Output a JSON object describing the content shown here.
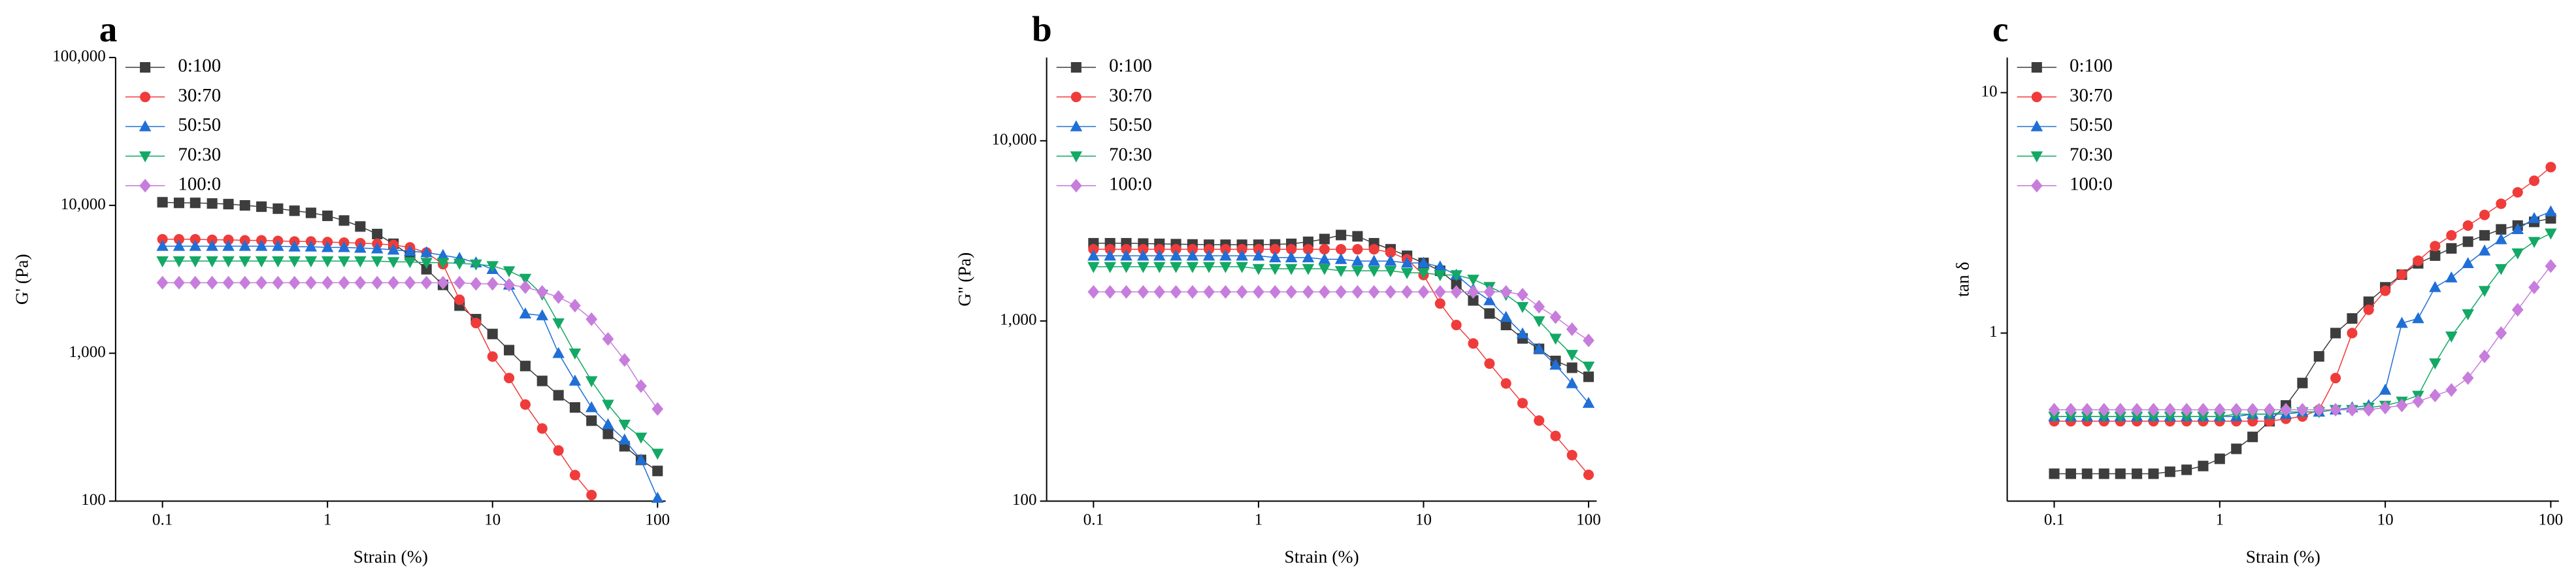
{
  "chart_data": [
    {
      "type": "line",
      "title": "a",
      "xlabel": "Strain (%)",
      "ylabel": "G' (Pa)",
      "xscale": "log",
      "yscale": "log",
      "legend": "upper left",
      "xlim": [
        0.052,
        112
      ],
      "xticks": [
        0.1,
        1,
        10,
        100
      ],
      "ylim": [
        100,
        100000
      ],
      "yticks": [
        100,
        {
          "value": 1000,
          "label": "1,000"
        },
        {
          "value": 10000,
          "label": "10,000"
        },
        {
          "value": 100000,
          "label": "100,000"
        }
      ],
      "x": [
        0.1,
        0.126,
        0.158,
        0.2,
        0.251,
        0.316,
        0.398,
        0.501,
        0.631,
        0.794,
        1,
        1.26,
        1.58,
        2,
        2.51,
        3.16,
        3.98,
        5.01,
        6.31,
        7.94,
        10,
        12.6,
        15.8,
        20,
        25.1,
        31.6,
        39.8,
        50.1,
        63.1,
        79.4,
        100
      ],
      "series": [
        {
          "name": "0:100",
          "color": "#3d3d3d",
          "marker": "square",
          "values": [
            10500,
            10400,
            10400,
            10300,
            10200,
            10000,
            9800,
            9500,
            9200,
            8900,
            8500,
            7900,
            7200,
            6400,
            5500,
            4600,
            3700,
            2900,
            2100,
            1700,
            1350,
            1050,
            820,
            650,
            520,
            430,
            350,
            285,
            235,
            190,
            160
          ]
        },
        {
          "name": "30:70",
          "color": "#f03b3b",
          "marker": "circle",
          "values": [
            5900,
            5900,
            5900,
            5850,
            5850,
            5800,
            5800,
            5750,
            5700,
            5700,
            5650,
            5600,
            5550,
            5500,
            5400,
            5200,
            4800,
            4000,
            2300,
            1600,
            950,
            680,
            450,
            310,
            220,
            150,
            110,
            null,
            null,
            null,
            null
          ]
        },
        {
          "name": "50:50",
          "color": "#1f6fd6",
          "marker": "triangle-up",
          "values": [
            5300,
            5300,
            5300,
            5300,
            5300,
            5300,
            5300,
            5300,
            5250,
            5250,
            5200,
            5200,
            5150,
            5100,
            5000,
            4900,
            4800,
            4600,
            4400,
            4100,
            3700,
            2900,
            1850,
            1800,
            1000,
            650,
            430,
            330,
            260,
            190,
            105
          ]
        },
        {
          "name": "70:30",
          "color": "#14a865",
          "marker": "triangle-down",
          "values": [
            4200,
            4200,
            4200,
            4200,
            4200,
            4200,
            4200,
            4200,
            4200,
            4200,
            4200,
            4200,
            4200,
            4200,
            4150,
            4150,
            4100,
            4100,
            4050,
            4000,
            3900,
            3600,
            3200,
            2500,
            1600,
            1000,
            650,
            450,
            330,
            270,
            210
          ]
        },
        {
          "name": "100:0",
          "color": "#c77ddc",
          "marker": "diamond",
          "values": [
            3000,
            3000,
            3000,
            3000,
            3000,
            3000,
            3000,
            3000,
            3000,
            3000,
            3000,
            3000,
            3000,
            3000,
            3000,
            3000,
            3000,
            3000,
            3000,
            2950,
            2950,
            2900,
            2800,
            2600,
            2400,
            2100,
            1700,
            1250,
            900,
            600,
            420
          ]
        }
      ]
    },
    {
      "type": "line",
      "title": "b",
      "xlabel": "Strain (%)",
      "ylabel": "G'' (Pa)",
      "xscale": "log",
      "yscale": "log",
      "legend": "upper left",
      "xlim": [
        0.052,
        112
      ],
      "xticks": [
        0.1,
        1,
        10,
        100
      ],
      "ylim": [
        100,
        29000
      ],
      "yticks": [
        100,
        {
          "value": 1000,
          "label": "1,000"
        },
        {
          "value": 10000,
          "label": "10,000"
        }
      ],
      "x": [
        0.1,
        0.126,
        0.158,
        0.2,
        0.251,
        0.316,
        0.398,
        0.501,
        0.631,
        0.794,
        1,
        1.26,
        1.58,
        2,
        2.51,
        3.16,
        3.98,
        5.01,
        6.31,
        7.94,
        10,
        12.6,
        15.8,
        20,
        25.1,
        31.6,
        39.8,
        50.1,
        63.1,
        79.4,
        100
      ],
      "series": [
        {
          "name": "0:100",
          "color": "#3d3d3d",
          "marker": "square",
          "values": [
            2700,
            2700,
            2700,
            2690,
            2680,
            2670,
            2660,
            2650,
            2650,
            2650,
            2650,
            2660,
            2680,
            2750,
            2850,
            3000,
            2950,
            2700,
            2500,
            2300,
            2100,
            1900,
            1600,
            1300,
            1100,
            950,
            800,
            700,
            600,
            550,
            490
          ]
        },
        {
          "name": "30:70",
          "color": "#f03b3b",
          "marker": "circle",
          "values": [
            2500,
            2500,
            2500,
            2500,
            2500,
            2500,
            2500,
            2500,
            2500,
            2500,
            2500,
            2500,
            2500,
            2500,
            2500,
            2500,
            2500,
            2500,
            2400,
            2200,
            1800,
            1250,
            950,
            750,
            580,
            450,
            350,
            280,
            230,
            180,
            140
          ]
        },
        {
          "name": "50:50",
          "color": "#1f6fd6",
          "marker": "triangle-up",
          "values": [
            2300,
            2300,
            2300,
            2300,
            2300,
            2300,
            2300,
            2300,
            2300,
            2300,
            2300,
            2250,
            2250,
            2250,
            2200,
            2200,
            2150,
            2150,
            2150,
            2100,
            2100,
            2000,
            1800,
            1500,
            1300,
            1050,
            850,
            700,
            570,
            450,
            350
          ]
        },
        {
          "name": "70:30",
          "color": "#14a865",
          "marker": "triangle-down",
          "values": [
            2000,
            2000,
            2000,
            2000,
            2000,
            2000,
            2000,
            2000,
            2000,
            2000,
            1950,
            1950,
            1950,
            1950,
            1950,
            1900,
            1900,
            1900,
            1900,
            1850,
            1850,
            1800,
            1800,
            1700,
            1550,
            1400,
            1200,
            1000,
            800,
            650,
            560
          ]
        },
        {
          "name": "100:0",
          "color": "#c77ddc",
          "marker": "diamond",
          "values": [
            1450,
            1450,
            1450,
            1450,
            1450,
            1450,
            1450,
            1450,
            1450,
            1450,
            1450,
            1450,
            1450,
            1450,
            1450,
            1450,
            1450,
            1450,
            1450,
            1450,
            1450,
            1450,
            1450,
            1450,
            1450,
            1450,
            1400,
            1200,
            1050,
            900,
            780
          ]
        }
      ]
    },
    {
      "type": "line",
      "title": "c",
      "xlabel": "Strain (%)",
      "ylabel": "tan δ",
      "xscale": "log",
      "yscale": "log",
      "legend": "upper left",
      "xlim": [
        0.052,
        112
      ],
      "xticks": [
        0.1,
        1,
        10,
        100
      ],
      "ylim": [
        0.2,
        14
      ],
      "yticks": [
        1,
        10
      ],
      "x": [
        0.1,
        0.126,
        0.158,
        0.2,
        0.251,
        0.316,
        0.398,
        0.501,
        0.631,
        0.794,
        1,
        1.26,
        1.58,
        2,
        2.51,
        3.16,
        3.98,
        5.01,
        6.31,
        7.94,
        10,
        12.6,
        15.8,
        20,
        25.1,
        31.6,
        39.8,
        50.1,
        63.1,
        79.4,
        100
      ],
      "series": [
        {
          "name": "0:100",
          "color": "#3d3d3d",
          "marker": "square",
          "values": [
            0.26,
            0.26,
            0.26,
            0.26,
            0.26,
            0.26,
            0.26,
            0.265,
            0.27,
            0.28,
            0.3,
            0.33,
            0.37,
            0.43,
            0.5,
            0.62,
            0.8,
            1.0,
            1.15,
            1.35,
            1.55,
            1.75,
            1.95,
            2.1,
            2.25,
            2.4,
            2.55,
            2.7,
            2.8,
            2.9,
            3.0
          ]
        },
        {
          "name": "30:70",
          "color": "#f03b3b",
          "marker": "circle",
          "values": [
            0.43,
            0.43,
            0.43,
            0.43,
            0.43,
            0.43,
            0.43,
            0.43,
            0.43,
            0.43,
            0.43,
            0.43,
            0.43,
            0.43,
            0.44,
            0.45,
            0.48,
            0.65,
            1.0,
            1.25,
            1.5,
            1.75,
            2.0,
            2.3,
            2.55,
            2.8,
            3.1,
            3.45,
            3.85,
            4.3,
            4.9
          ]
        },
        {
          "name": "50:50",
          "color": "#1f6fd6",
          "marker": "triangle-up",
          "values": [
            0.45,
            0.45,
            0.45,
            0.45,
            0.45,
            0.45,
            0.45,
            0.45,
            0.45,
            0.45,
            0.45,
            0.45,
            0.46,
            0.46,
            0.46,
            0.47,
            0.47,
            0.48,
            0.49,
            0.5,
            0.58,
            1.1,
            1.15,
            1.55,
            1.7,
            1.95,
            2.2,
            2.45,
            2.7,
            3.0,
            3.2
          ]
        },
        {
          "name": "70:30",
          "color": "#14a865",
          "marker": "triangle-down",
          "values": [
            0.45,
            0.45,
            0.45,
            0.45,
            0.45,
            0.45,
            0.45,
            0.45,
            0.45,
            0.45,
            0.45,
            0.46,
            0.46,
            0.46,
            0.47,
            0.47,
            0.47,
            0.48,
            0.48,
            0.49,
            0.5,
            0.52,
            0.55,
            0.75,
            0.97,
            1.2,
            1.5,
            1.85,
            2.15,
            2.4,
            2.6
          ]
        },
        {
          "name": "100:0",
          "color": "#c77ddc",
          "marker": "diamond",
          "values": [
            0.48,
            0.48,
            0.48,
            0.48,
            0.48,
            0.48,
            0.48,
            0.48,
            0.48,
            0.48,
            0.48,
            0.48,
            0.48,
            0.48,
            0.48,
            0.48,
            0.48,
            0.48,
            0.48,
            0.48,
            0.49,
            0.5,
            0.52,
            0.55,
            0.58,
            0.65,
            0.8,
            1.0,
            1.25,
            1.55,
            1.9
          ]
        }
      ]
    }
  ]
}
